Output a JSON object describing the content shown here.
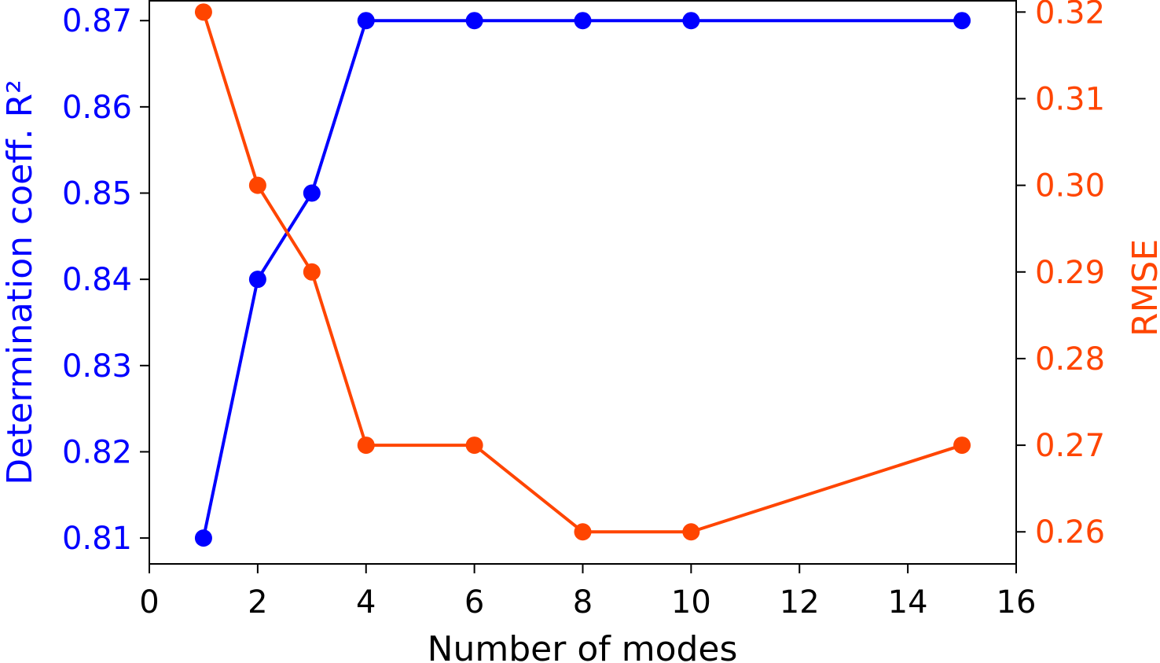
{
  "chart_data": {
    "type": "line",
    "xlabel": "Number of modes",
    "x_ticks": [
      "0",
      "2",
      "4",
      "6",
      "8",
      "10",
      "12",
      "14",
      "16"
    ],
    "xlim": [
      0,
      16
    ],
    "left_axis": {
      "label": "Determination coeff. R²",
      "ylim": [
        0.807,
        0.8723
      ],
      "ticks": [
        "0.81",
        "0.82",
        "0.83",
        "0.84",
        "0.85",
        "0.86",
        "0.87"
      ],
      "color": "#0000ff"
    },
    "right_axis": {
      "label": "RMSE",
      "ylim": [
        0.2563,
        0.3213
      ],
      "ticks": [
        "0.26",
        "0.27",
        "0.28",
        "0.29",
        "0.30",
        "0.31",
        "0.32"
      ],
      "color": "#ff4500"
    },
    "x": [
      1,
      2,
      3,
      4,
      6,
      8,
      10,
      15
    ],
    "series": [
      {
        "axis": "left",
        "color": "#0000ff",
        "values": [
          0.81,
          0.84,
          0.85,
          0.87,
          0.87,
          0.87,
          0.87,
          0.87
        ]
      },
      {
        "axis": "right",
        "color": "#ff4500",
        "values": [
          0.32,
          0.3,
          0.29,
          0.27,
          0.27,
          0.26,
          0.26,
          0.27
        ]
      }
    ],
    "grid": false,
    "legend": "none"
  }
}
